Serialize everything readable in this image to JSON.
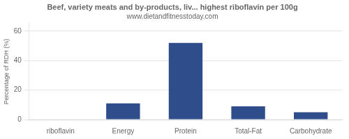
{
  "chart_data": {
    "type": "bar",
    "title": "Beef, variety meats and by-products, liv... highest riboflavin per 100g",
    "subtitle": "www.dietandfitnesstoday.com",
    "categories": [
      "riboflavin",
      "Energy",
      "Protein",
      "Total-Fat",
      "Carbohydrate"
    ],
    "values": [
      0,
      11,
      52,
      9,
      5
    ],
    "color": "#2e4d8a",
    "ylabel": "Percentage of RDH (%)",
    "ylim": [
      0,
      65
    ],
    "yticks": [
      0,
      20,
      40,
      60
    ],
    "grid": true
  }
}
